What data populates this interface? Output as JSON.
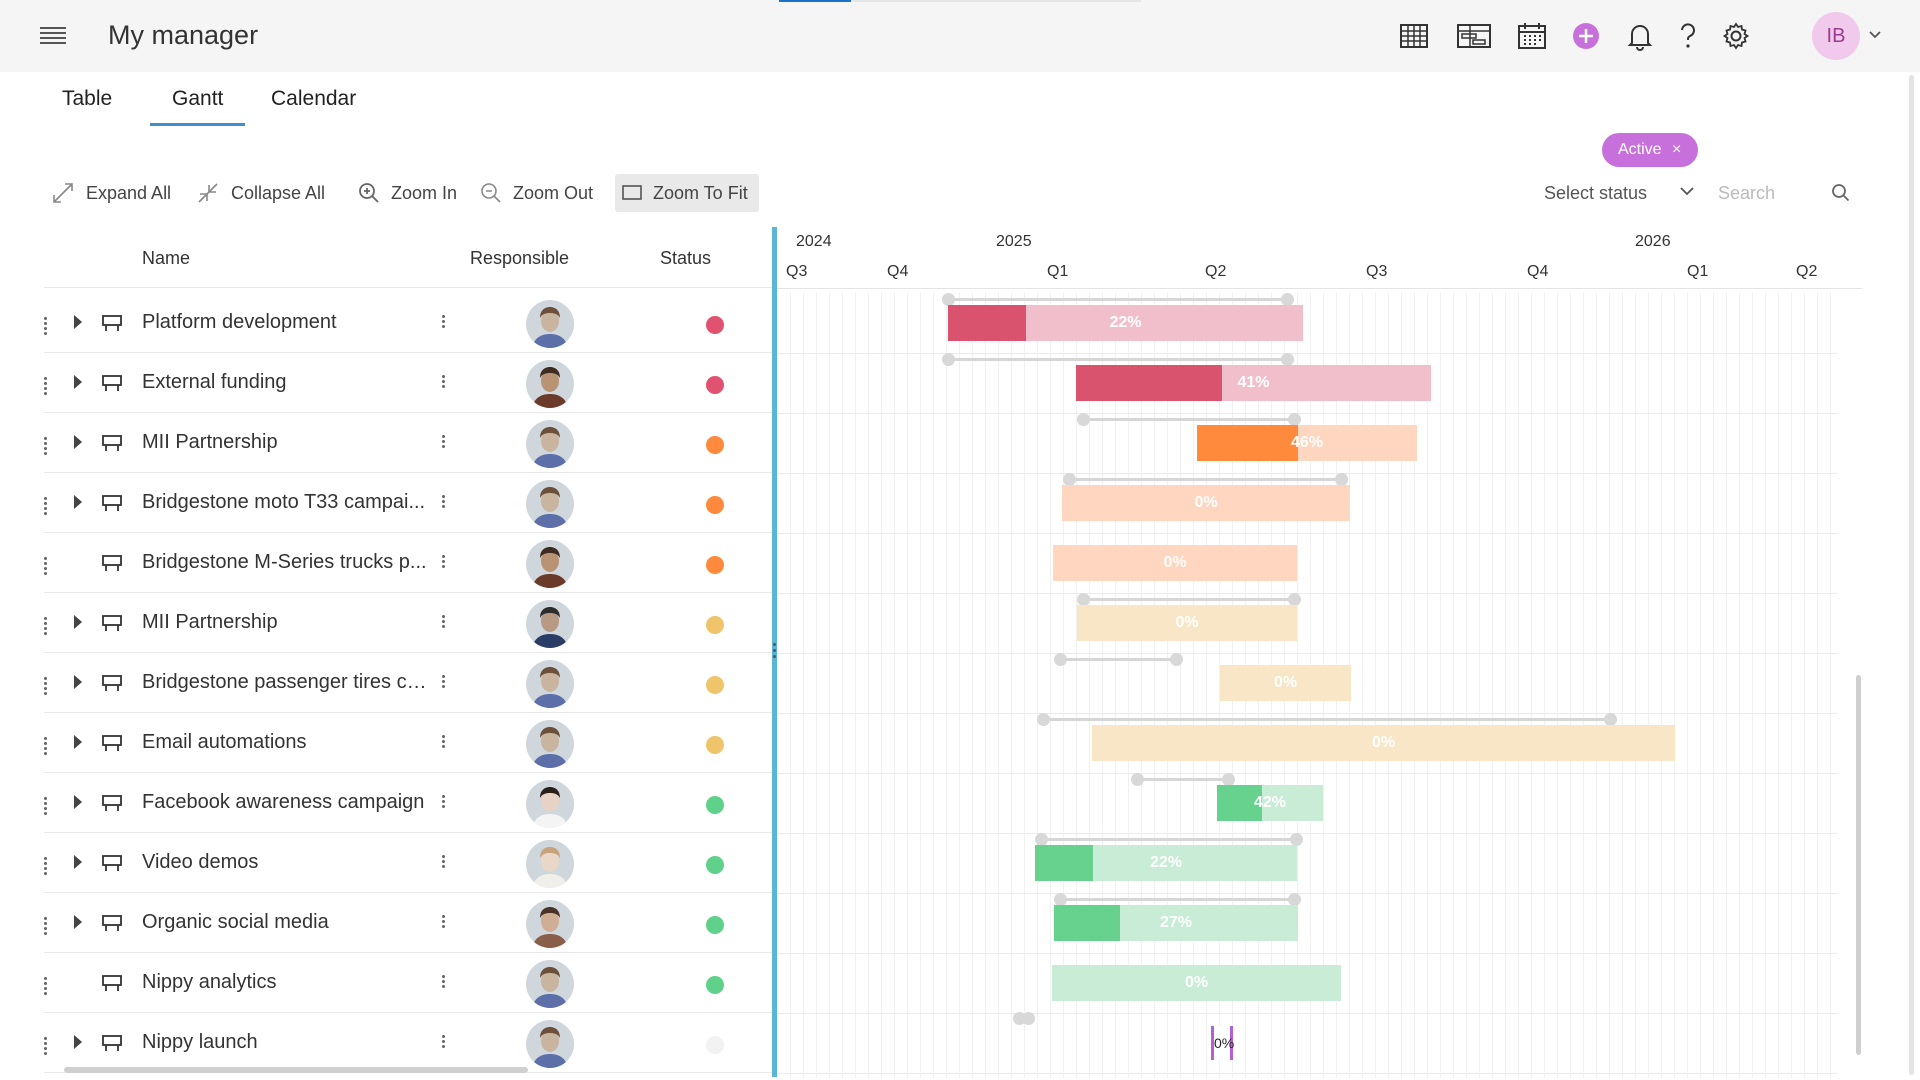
{
  "app": {
    "title": "My manager",
    "user_initials": "IB"
  },
  "toolbar_icons": [
    "table-view-icon",
    "gantt-view-icon",
    "calendar-view-icon",
    "add-icon",
    "bell-icon",
    "help-icon",
    "settings-icon"
  ],
  "tabs": [
    {
      "label": "Table",
      "active": false
    },
    {
      "label": "Gantt",
      "active": true
    },
    {
      "label": "Calendar",
      "active": false
    }
  ],
  "filter_chip": {
    "label": "Active",
    "close": "×"
  },
  "actions": {
    "expand_all": "Expand All",
    "collapse_all": "Collapse All",
    "zoom_in": "Zoom In",
    "zoom_out": "Zoom Out",
    "zoom_to_fit": "Zoom To Fit"
  },
  "status_filter": {
    "label": "Select status"
  },
  "search": {
    "placeholder": "Search",
    "value": ""
  },
  "columns": {
    "name": "Name",
    "responsible": "Responsible",
    "status": "Status"
  },
  "colors": {
    "accent": "#3e8ed0",
    "splitter": "#5ab5d6",
    "chip": "#c770dc",
    "red": "#e0526f",
    "orange": "#ff8a3d",
    "yellow": "#f0c46a",
    "green": "#60d18a",
    "empty": "#f2f2f2"
  },
  "rows": [
    {
      "name": "Platform development",
      "status_color": "#e0526f",
      "expandable": true,
      "person": "man-blue-shirt"
    },
    {
      "name": "External funding",
      "status_color": "#e0526f",
      "expandable": true,
      "person": "man-brown-jacket"
    },
    {
      "name": "MII Partnership",
      "status_color": "#ff8a3d",
      "expandable": true,
      "person": "man-blue-shirt"
    },
    {
      "name": "Bridgestone moto T33 campai...",
      "status_color": "#ff8a3d",
      "expandable": true,
      "person": "man-blue-shirt"
    },
    {
      "name": "Bridgestone M-Series trucks p...",
      "status_color": "#ff8a3d",
      "expandable": false,
      "person": "man-brown-jacket"
    },
    {
      "name": "MII Partnership",
      "status_color": "#f0c46a",
      "expandable": true,
      "person": "man-suit-desk"
    },
    {
      "name": "Bridgestone passenger tires ca...",
      "status_color": "#f0c46a",
      "expandable": true,
      "person": "man-blue-shirt"
    },
    {
      "name": "Email automations",
      "status_color": "#f0c46a",
      "expandable": true,
      "person": "man-blue-shirt"
    },
    {
      "name": "Facebook awareness campaign",
      "status_color": "#60d18a",
      "expandable": true,
      "person": "woman-laptop"
    },
    {
      "name": "Video demos",
      "status_color": "#60d18a",
      "expandable": true,
      "person": "woman-white"
    },
    {
      "name": "Organic social media",
      "status_color": "#60d18a",
      "expandable": true,
      "person": "woman-desk"
    },
    {
      "name": "Nippy analytics",
      "status_color": "#60d18a",
      "expandable": false,
      "person": "man-blue-shirt"
    },
    {
      "name": "Nippy launch",
      "status_color": "#f2f2f2",
      "expandable": true,
      "person": "man-blue-shirt"
    }
  ],
  "timeline": {
    "years": [
      "2024",
      "2025",
      "2026"
    ],
    "quarters": [
      "Q3",
      "Q4",
      "Q1",
      "Q2",
      "Q3",
      "Q4",
      "Q1",
      "Q2"
    ]
  },
  "gantt_bars": [
    {
      "progress_label": "22%",
      "progress": 0.22,
      "bar_color": "#f1bfcc",
      "fill_color": "#d9536f"
    },
    {
      "progress_label": "41%",
      "progress": 0.41,
      "bar_color": "#f1bfcc",
      "fill_color": "#d9536f"
    },
    {
      "progress_label": "46%",
      "progress": 0.46,
      "bar_color": "#ffd6bf",
      "fill_color": "#ff8a3d"
    },
    {
      "progress_label": "0%",
      "progress": 0,
      "bar_color": "#ffd6bf",
      "fill_color": "#ff8a3d"
    },
    {
      "progress_label": "0%",
      "progress": 0,
      "bar_color": "#ffd6bf",
      "fill_color": "#ff8a3d"
    },
    {
      "progress_label": "0%",
      "progress": 0,
      "bar_color": "#f8e6c6",
      "fill_color": "#f0c46a"
    },
    {
      "progress_label": "0%",
      "progress": 0,
      "bar_color": "#f8e6c6",
      "fill_color": "#f0c46a"
    },
    {
      "progress_label": "0%",
      "progress": 0,
      "bar_color": "#f8e6c6",
      "fill_color": "#f0c46a"
    },
    {
      "progress_label": "42%",
      "progress": 0.42,
      "bar_color": "#c8ecd6",
      "fill_color": "#66d28d"
    },
    {
      "progress_label": "22%",
      "progress": 0.22,
      "bar_color": "#c8ecd6",
      "fill_color": "#66d28d"
    },
    {
      "progress_label": "27%",
      "progress": 0.27,
      "bar_color": "#c8ecd6",
      "fill_color": "#66d28d"
    },
    {
      "progress_label": "0%",
      "progress": 0,
      "bar_color": "#c8ecd6",
      "fill_color": "#66d28d"
    }
  ],
  "milestone": {
    "progress_label": "0%"
  }
}
